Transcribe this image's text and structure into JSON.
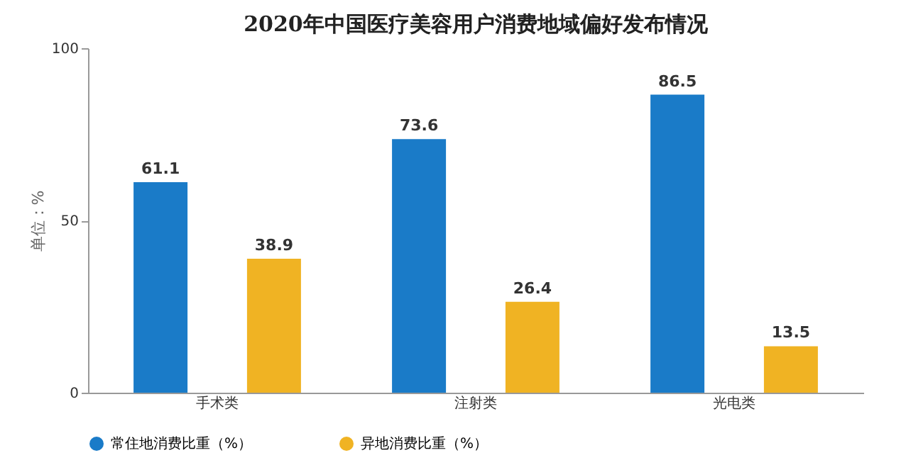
{
  "chart_data": {
    "type": "bar",
    "title": "2020年中国医疗美容用户消费地域偏好发布情况",
    "ylabel": "单位：%",
    "categories": [
      "手术类",
      "注射类",
      "光电类"
    ],
    "series": [
      {
        "name": "常住地消费比重（%）",
        "color": "#1a7bc8",
        "values": [
          61.1,
          73.6,
          86.5
        ]
      },
      {
        "name": "异地消费比重（%）",
        "color": "#f0b323",
        "values": [
          38.9,
          26.4,
          13.5
        ]
      }
    ],
    "ylim": [
      0,
      100
    ],
    "yticks": [
      0,
      50,
      100
    ],
    "grid": false,
    "legend": "bottom",
    "data_labels": true
  }
}
